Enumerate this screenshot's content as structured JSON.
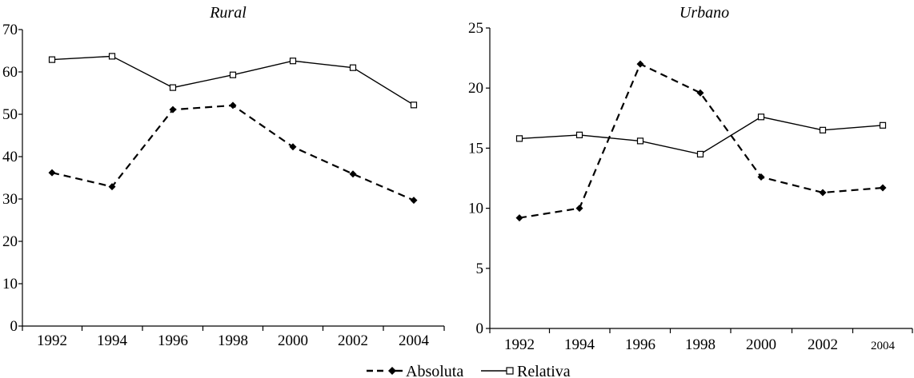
{
  "chart_data": [
    {
      "type": "line",
      "title": "Rural",
      "categories": [
        "1992",
        "1994",
        "1996",
        "1998",
        "2000",
        "2002",
        "2004"
      ],
      "ylim": [
        0,
        70
      ],
      "yticks": [
        "0",
        "10",
        "20",
        "30",
        "40",
        "50",
        "60",
        "70"
      ],
      "grid": false,
      "series": [
        {
          "name": "Absoluta",
          "style": "dashed",
          "marker": "diamond-filled",
          "values": [
            36.2,
            32.9,
            51.1,
            52.1,
            42.3,
            35.9,
            29.7
          ]
        },
        {
          "name": "Relativa",
          "style": "solid",
          "marker": "square-open",
          "values": [
            62.9,
            63.7,
            56.3,
            59.3,
            62.6,
            61.0,
            52.2
          ]
        }
      ]
    },
    {
      "type": "line",
      "title": "Urbano",
      "categories": [
        "1992",
        "1994",
        "1996",
        "1998",
        "2000",
        "2002",
        "2004"
      ],
      "ylim": [
        0,
        25
      ],
      "yticks": [
        "0",
        "5",
        "10",
        "15",
        "20",
        "25"
      ],
      "grid": false,
      "series": [
        {
          "name": "Absoluta",
          "style": "dashed",
          "marker": "diamond-filled",
          "values": [
            9.2,
            10.0,
            22.0,
            19.6,
            12.6,
            11.3,
            11.7
          ]
        },
        {
          "name": "Relativa",
          "style": "solid",
          "marker": "square-open",
          "values": [
            15.8,
            16.1,
            15.6,
            14.5,
            17.6,
            16.5,
            16.9
          ]
        }
      ]
    }
  ],
  "legend": {
    "placement": "bottom-center",
    "items": [
      {
        "label": "Absoluta",
        "style": "dashed",
        "marker": "diamond-filled"
      },
      {
        "label": "Relativa",
        "style": "solid",
        "marker": "square-open"
      }
    ]
  },
  "colors": {
    "line": "#000000",
    "background": "#ffffff"
  }
}
